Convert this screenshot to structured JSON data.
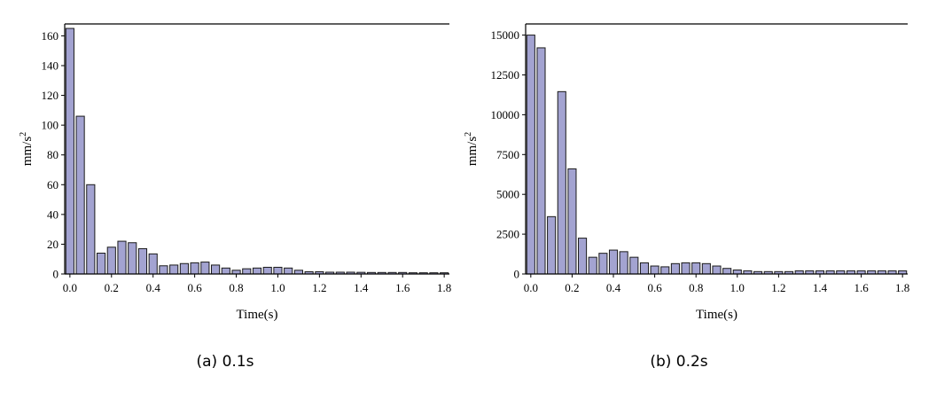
{
  "colors": {
    "bar_fill": "#a3a3d1",
    "bar_stroke": "#1a1a1a",
    "axis": "#000000"
  },
  "charts": [
    {
      "caption": "(a) 0.1s",
      "chart_data": {
        "type": "bar",
        "title": "",
        "xlabel": "Time(s)",
        "ylabel": "mm/s",
        "ylabel_superscript": "2",
        "x_step": 0.05,
        "x": [
          0.0,
          0.05,
          0.1,
          0.15,
          0.2,
          0.25,
          0.3,
          0.35,
          0.4,
          0.45,
          0.5,
          0.55,
          0.6,
          0.65,
          0.7,
          0.75,
          0.8,
          0.85,
          0.9,
          0.95,
          1.0,
          1.05,
          1.1,
          1.15,
          1.2,
          1.25,
          1.3,
          1.35,
          1.4,
          1.45,
          1.5,
          1.55,
          1.6,
          1.65,
          1.7,
          1.75,
          1.8
        ],
        "values": [
          165,
          106,
          60,
          14,
          18,
          22,
          21,
          17,
          13.5,
          5.5,
          6,
          7,
          7.5,
          8,
          6,
          4,
          2.5,
          3.5,
          4,
          4.5,
          4.5,
          4,
          2.5,
          1.5,
          1.5,
          1.2,
          1.2,
          1.2,
          1.1,
          1,
          1,
          1,
          1,
          0.8,
          0.8,
          0.8,
          0.8
        ],
        "xlim": [
          -0.025,
          1.825
        ],
        "ylim": [
          0,
          168
        ],
        "xticks": [
          0.0,
          0.2,
          0.4,
          0.6,
          0.8,
          1.0,
          1.2,
          1.4,
          1.6,
          1.8
        ],
        "xtick_labels": [
          "0.0",
          "0.2",
          "0.4",
          "0.6",
          "0.8",
          "1.0",
          "1.2",
          "1.4",
          "1.6",
          "1.8"
        ],
        "yticks": [
          0,
          20,
          40,
          60,
          80,
          100,
          120,
          140,
          160
        ],
        "ytick_labels": [
          "0",
          "20",
          "40",
          "60",
          "80",
          "100",
          "120",
          "140",
          "160"
        ],
        "grid": false
      }
    },
    {
      "caption": "(b) 0.2s",
      "chart_data": {
        "type": "bar",
        "title": "",
        "xlabel": "Time(s)",
        "ylabel": "mm/s",
        "ylabel_superscript": "2",
        "x_step": 0.05,
        "x": [
          0.0,
          0.05,
          0.1,
          0.15,
          0.2,
          0.25,
          0.3,
          0.35,
          0.4,
          0.45,
          0.5,
          0.55,
          0.6,
          0.65,
          0.7,
          0.75,
          0.8,
          0.85,
          0.9,
          0.95,
          1.0,
          1.05,
          1.1,
          1.15,
          1.2,
          1.25,
          1.3,
          1.35,
          1.4,
          1.45,
          1.5,
          1.55,
          1.6,
          1.65,
          1.7,
          1.75,
          1.8
        ],
        "values": [
          15000,
          14200,
          3600,
          11450,
          6600,
          2250,
          1050,
          1300,
          1500,
          1400,
          1050,
          700,
          500,
          450,
          650,
          700,
          700,
          650,
          500,
          350,
          250,
          200,
          150,
          150,
          150,
          150,
          200,
          200,
          200,
          200,
          200,
          200,
          200,
          200,
          200,
          200,
          200
        ],
        "xlim": [
          -0.025,
          1.825
        ],
        "ylim": [
          0,
          15700
        ],
        "xticks": [
          0.0,
          0.2,
          0.4,
          0.6,
          0.8,
          1.0,
          1.2,
          1.4,
          1.6,
          1.8
        ],
        "xtick_labels": [
          "0.0",
          "0.2",
          "0.4",
          "0.6",
          "0.8",
          "1.0",
          "1.2",
          "1.4",
          "1.6",
          "1.8"
        ],
        "yticks": [
          0,
          2500,
          5000,
          7500,
          10000,
          12500,
          15000
        ],
        "ytick_labels": [
          "0",
          "2500",
          "5000",
          "7500",
          "10000",
          "12500",
          "15000"
        ],
        "grid": false
      }
    }
  ]
}
